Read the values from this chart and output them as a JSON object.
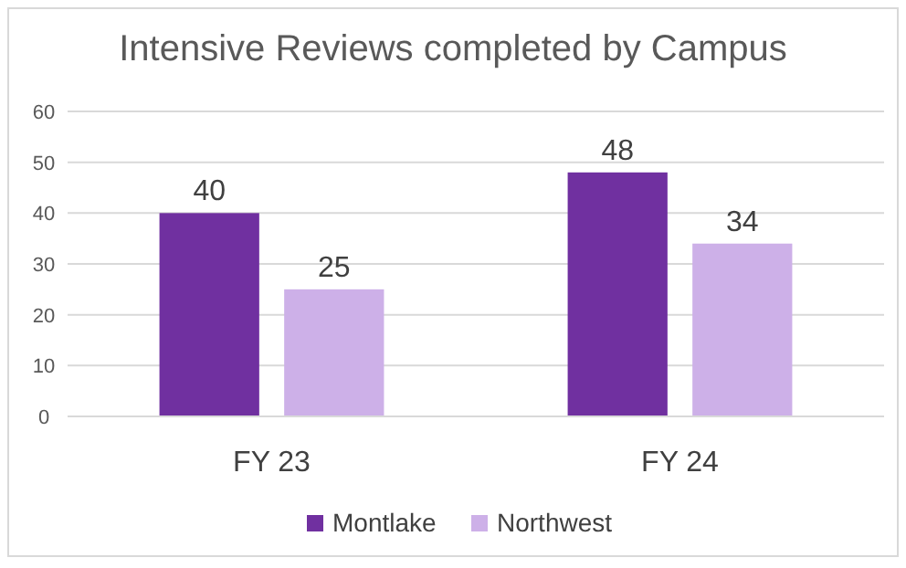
{
  "chart_data": {
    "type": "bar",
    "title": "Intensive Reviews completed by Campus",
    "categories": [
      "FY 23",
      "FY 24"
    ],
    "series": [
      {
        "name": "Montlake",
        "color": "#7030a0",
        "values": [
          40,
          48
        ]
      },
      {
        "name": "Northwest",
        "color": "#cdb0e8",
        "values": [
          25,
          34
        ]
      }
    ],
    "ylim": [
      0,
      60
    ],
    "yticks": [
      0,
      10,
      20,
      30,
      40,
      50,
      60
    ],
    "grid": "y",
    "legend": "bottom",
    "data_labels": true
  }
}
